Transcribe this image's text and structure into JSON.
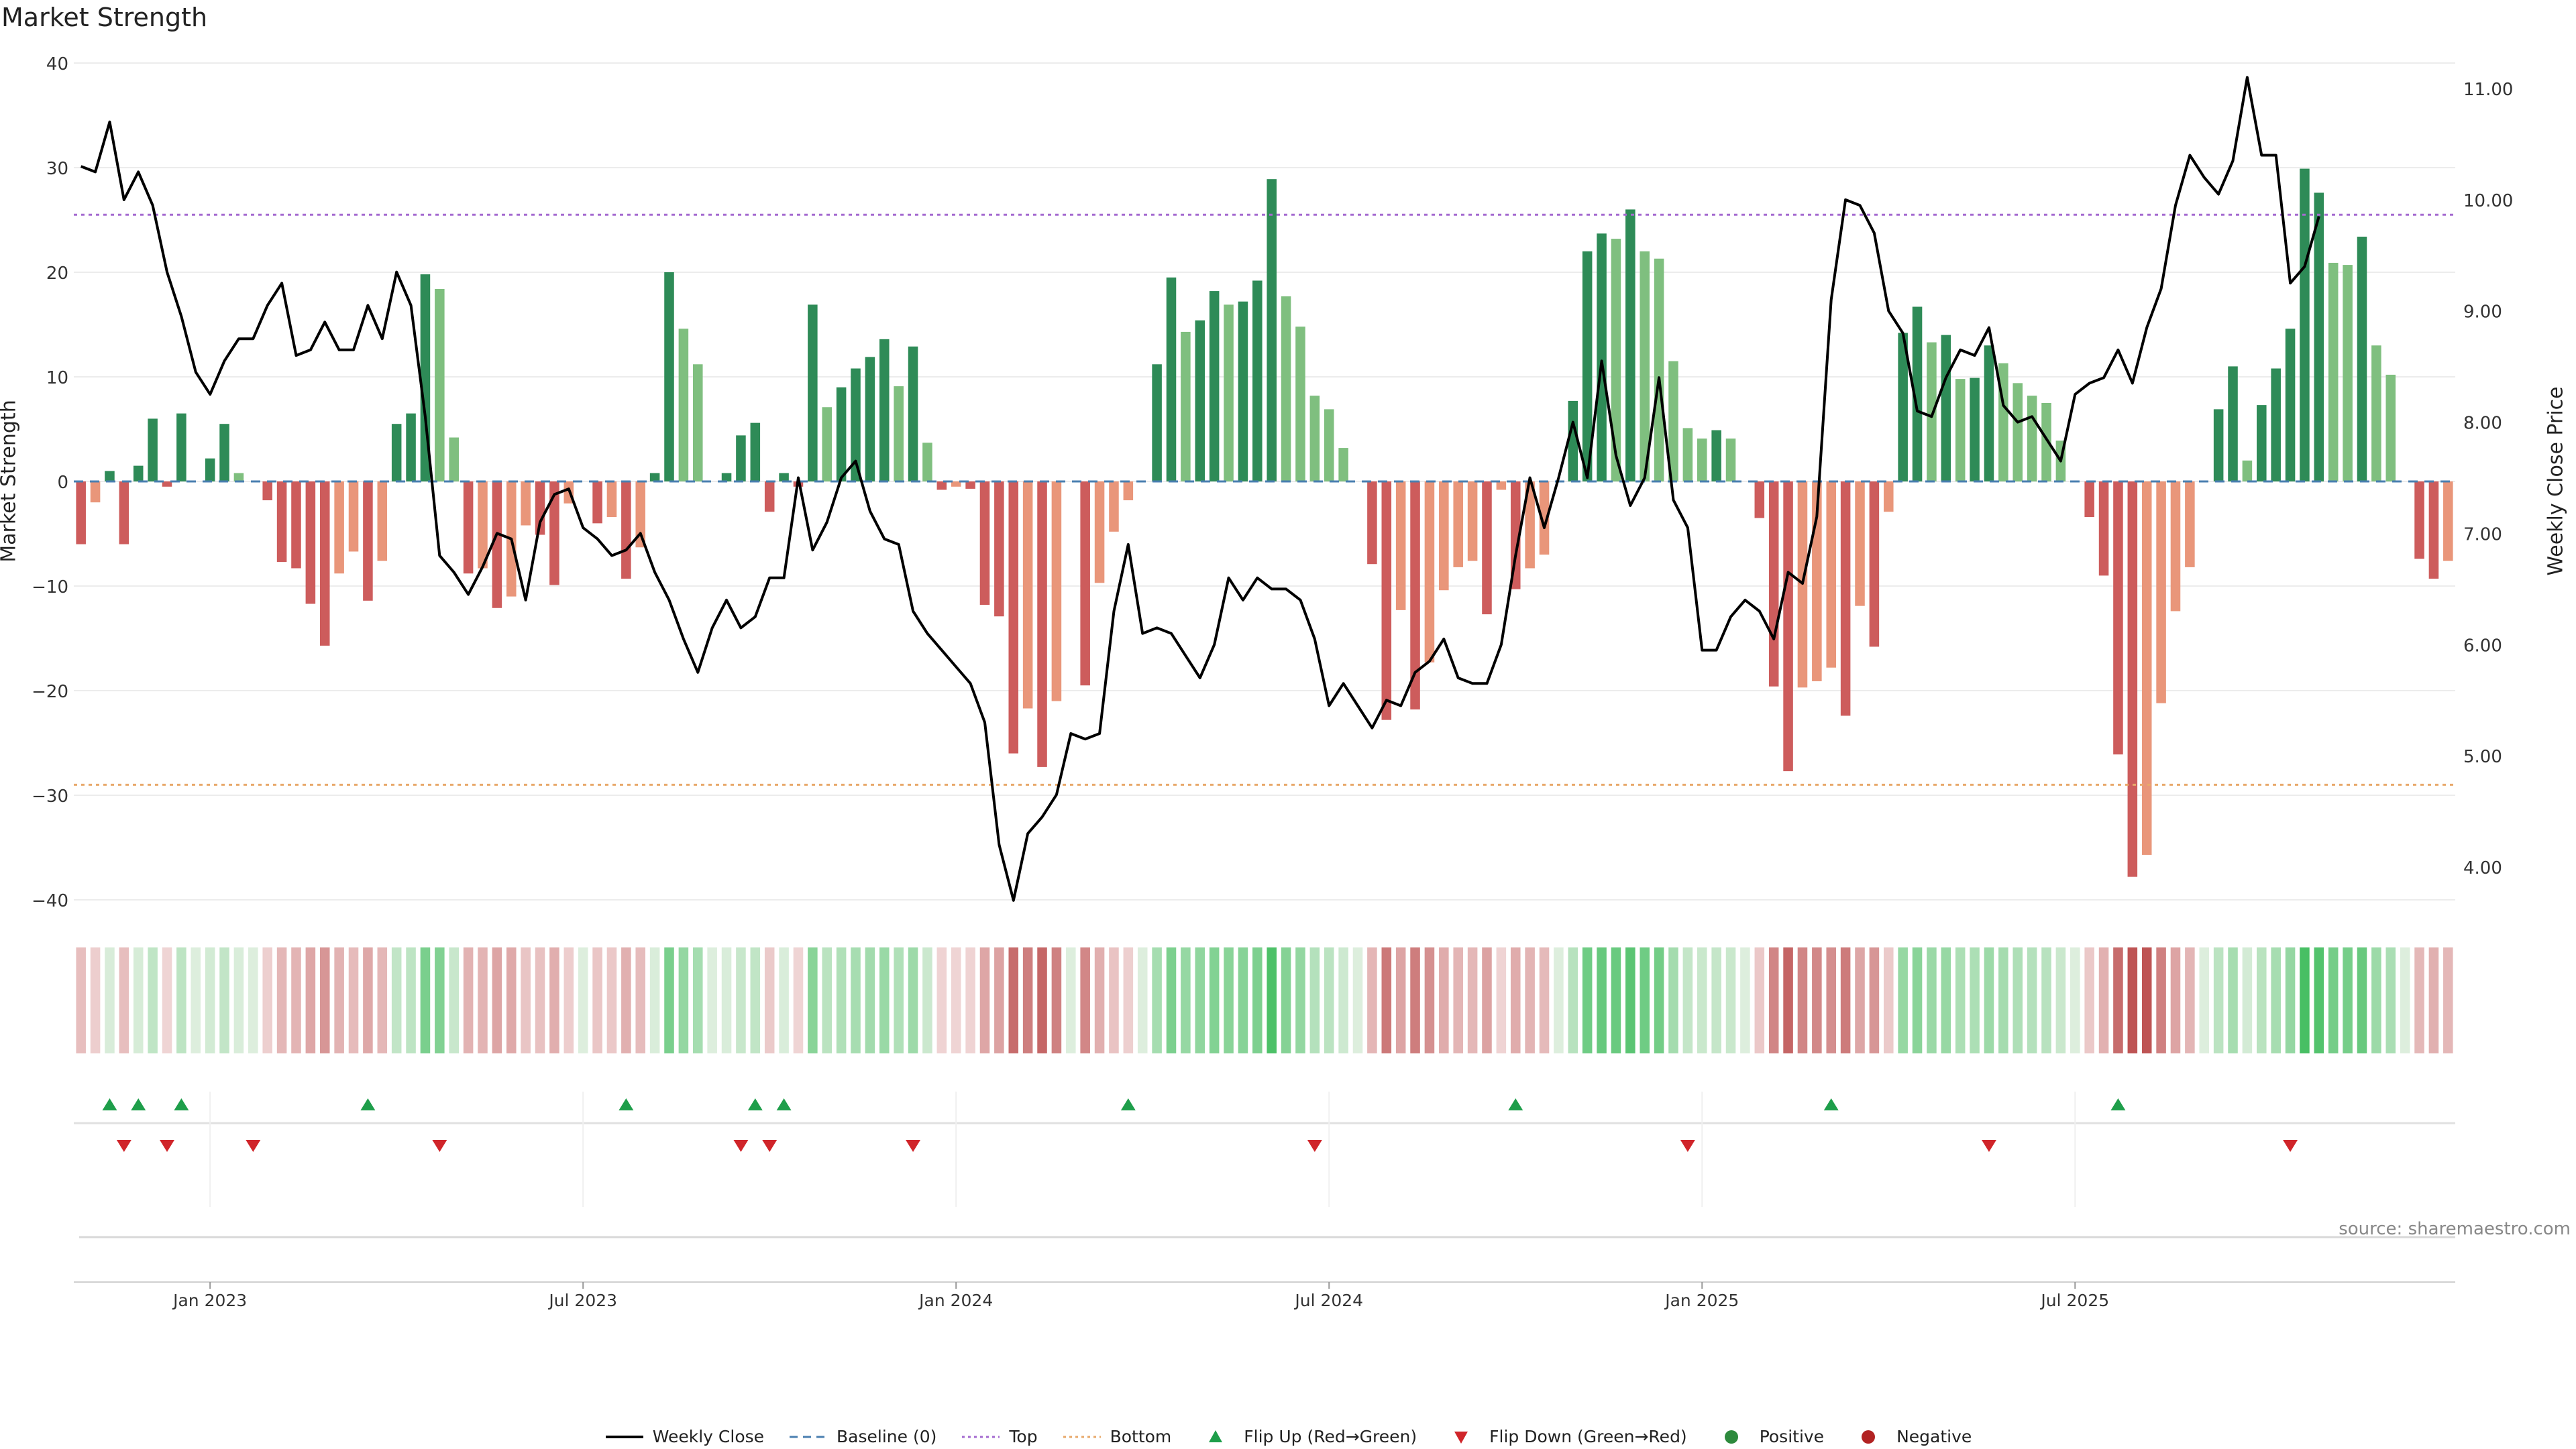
{
  "chart_data": {
    "type": "bar",
    "title": "Market Strength",
    "ylabel": "Market Strength",
    "y2label": "Weekly Close Price",
    "ylim": [
      -40,
      40
    ],
    "y_ticks": [
      40,
      30,
      20,
      10,
      0,
      -10,
      -20,
      -30,
      -40
    ],
    "y2lim": [
      3.7,
      11.2
    ],
    "y2_ticks": [
      "11.00",
      "10.00",
      "9.00",
      "8.00",
      "7.00",
      "6.00",
      "5.00",
      "4.00"
    ],
    "x_ticks": [
      {
        "label": "Jan 2023",
        "week": 9
      },
      {
        "label": "Jul 2023",
        "week": 35
      },
      {
        "label": "Jan 2024",
        "week": 61
      },
      {
        "label": "Jul 2024",
        "week": 87
      },
      {
        "label": "Jan 2025",
        "week": 113
      },
      {
        "label": "Jul 2025",
        "week": 139
      }
    ],
    "top_level": 25.5,
    "bottom_level": -29,
    "strength": [
      -6,
      -2,
      1,
      -6,
      1.5,
      6,
      -0.5,
      6.5,
      0,
      2.2,
      5.5,
      0.8,
      0,
      -1.8,
      -7.7,
      -8.3,
      -11.7,
      -15.7,
      -8.8,
      -6.7,
      -11.4,
      -7.6,
      5.5,
      6.5,
      19.8,
      18.4,
      4.2,
      -8.8,
      -8.3,
      -12.1,
      -11,
      -4.2,
      -5.1,
      -9.9,
      -2.1,
      0,
      -4,
      -3.4,
      -9.3,
      -6.3,
      0.8,
      20,
      14.6,
      11.2,
      0,
      0.8,
      4.4,
      5.6,
      -2.9,
      0.8,
      -0.5,
      16.9,
      7.1,
      9,
      10.8,
      11.9,
      13.6,
      9.1,
      12.9,
      3.7,
      -0.8,
      -0.5,
      -0.7,
      -11.8,
      -12.9,
      -26,
      -21.7,
      -27.3,
      -21,
      0,
      -19.5,
      -9.7,
      -4.8,
      -1.8,
      0,
      11.2,
      19.5,
      14.3,
      15.4,
      18.2,
      16.9,
      17.2,
      19.2,
      28.9,
      17.7,
      14.8,
      8.2,
      6.9,
      3.2,
      0,
      -7.9,
      -22.8,
      -12.3,
      -21.8,
      -17.3,
      -10.4,
      -8.2,
      -7.6,
      -12.7,
      -0.8,
      -10.3,
      -8.3,
      -7,
      0,
      7.7,
      22,
      23.7,
      23.2,
      26,
      22,
      21.3,
      11.5,
      5.1,
      4.1,
      4.9,
      4.1,
      0,
      -3.5,
      -19.6,
      -27.7,
      -19.7,
      -19.1,
      -17.8,
      -22.4,
      -11.9,
      -15.8,
      -2.9,
      14.2,
      16.7,
      13.3,
      14,
      9.8,
      9.9,
      13,
      11.3,
      9.4,
      8.2,
      7.5,
      3.9,
      0,
      -3.4,
      -9,
      -26.1,
      -37.8,
      -35.7,
      -21.2,
      -12.4,
      -8.2,
      0,
      6.9,
      11,
      2,
      7.3,
      10.8,
      14.6,
      29.9,
      27.6,
      20.9,
      20.7,
      23.4,
      13,
      10.2,
      0,
      -7.4,
      -9.3,
      -7.6
    ],
    "weekly_close": [
      10.3,
      10.25,
      10.7,
      10,
      10.25,
      9.95,
      9.35,
      8.95,
      8.45,
      8.25,
      8.55,
      8.75,
      8.75,
      9.05,
      9.25,
      8.6,
      8.65,
      8.9,
      8.65,
      8.65,
      9.05,
      8.75,
      9.35,
      9.05,
      8.05,
      6.8,
      6.65,
      6.45,
      6.7,
      7,
      6.95,
      6.4,
      7.1,
      7.35,
      7.4,
      7.05,
      6.95,
      6.8,
      6.85,
      7.0,
      6.65,
      6.4,
      6.05,
      5.75,
      6.15,
      6.4,
      6.15,
      6.25,
      6.6,
      6.6,
      7.5,
      6.85,
      7.1,
      7.5,
      7.65,
      7.2,
      6.95,
      6.9,
      6.3,
      6.1,
      5.95,
      5.8,
      5.65,
      5.3,
      4.2,
      3.7,
      4.3,
      4.45,
      4.65,
      5.2,
      5.15,
      5.2,
      6.3,
      6.9,
      6.1,
      6.15,
      6.1,
      5.9,
      5.7,
      6.0,
      6.6,
      6.4,
      6.6,
      6.5,
      6.5,
      6.4,
      6.05,
      5.45,
      5.65,
      5.45,
      5.25,
      5.5,
      5.45,
      5.75,
      5.85,
      6.05,
      5.7,
      5.65,
      5.65,
      6.0,
      6.8,
      7.5,
      7.05,
      7.5,
      8,
      7.5,
      8.55,
      7.7,
      7.25,
      7.5,
      8.4,
      7.3,
      7.05,
      5.95,
      5.95,
      6.25,
      6.4,
      6.3,
      6.05,
      6.65,
      6.55,
      7.15,
      9.1,
      10.0,
      9.95,
      9.7,
      9.0,
      8.8,
      8.1,
      8.05,
      8.4,
      8.65,
      8.6,
      8.85,
      8.15,
      8.0,
      8.05,
      7.85,
      7.65,
      8.25,
      8.35,
      8.4,
      8.65,
      8.35,
      8.85,
      9.2,
      9.95,
      10.4,
      10.2,
      10.05,
      10.35,
      11.1,
      10.4,
      10.4,
      9.25,
      9.4,
      9.85
    ],
    "heat_label": "strength heat strip (color intensity = |Market Strength|)",
    "flip_up_weeks": [
      2,
      4,
      7,
      20,
      38,
      47,
      49,
      73,
      100,
      122,
      142
    ],
    "flip_down_weeks": [
      3,
      6,
      12,
      25,
      46,
      48,
      58,
      86,
      112,
      133,
      154
    ],
    "legend": [
      {
        "label": "Weekly Close",
        "kind": "line",
        "color": "#000000"
      },
      {
        "label": "Baseline (0)",
        "kind": "dash",
        "color": "#4a7fb0"
      },
      {
        "label": "Top",
        "kind": "dot",
        "color": "#a56bd0"
      },
      {
        "label": "Bottom",
        "kind": "dot",
        "color": "#e8a96b"
      },
      {
        "label": "Flip Up (Red→Green)",
        "kind": "tri-up",
        "color": "#1e9e4a"
      },
      {
        "label": "Flip Down (Green→Red)",
        "kind": "tri-down",
        "color": "#d0252a"
      },
      {
        "label": "Positive",
        "kind": "circle",
        "color": "#2d8a3d"
      },
      {
        "label": "Negative",
        "kind": "circle",
        "color": "#b22222"
      }
    ],
    "colors": {
      "pos_strong": "#2e8b57",
      "pos_weak": "#7fbf7f",
      "neg_strong": "#cd5c5c",
      "neg_weak": "#e9967a"
    }
  },
  "source_text": "source: sharemaestro.com"
}
